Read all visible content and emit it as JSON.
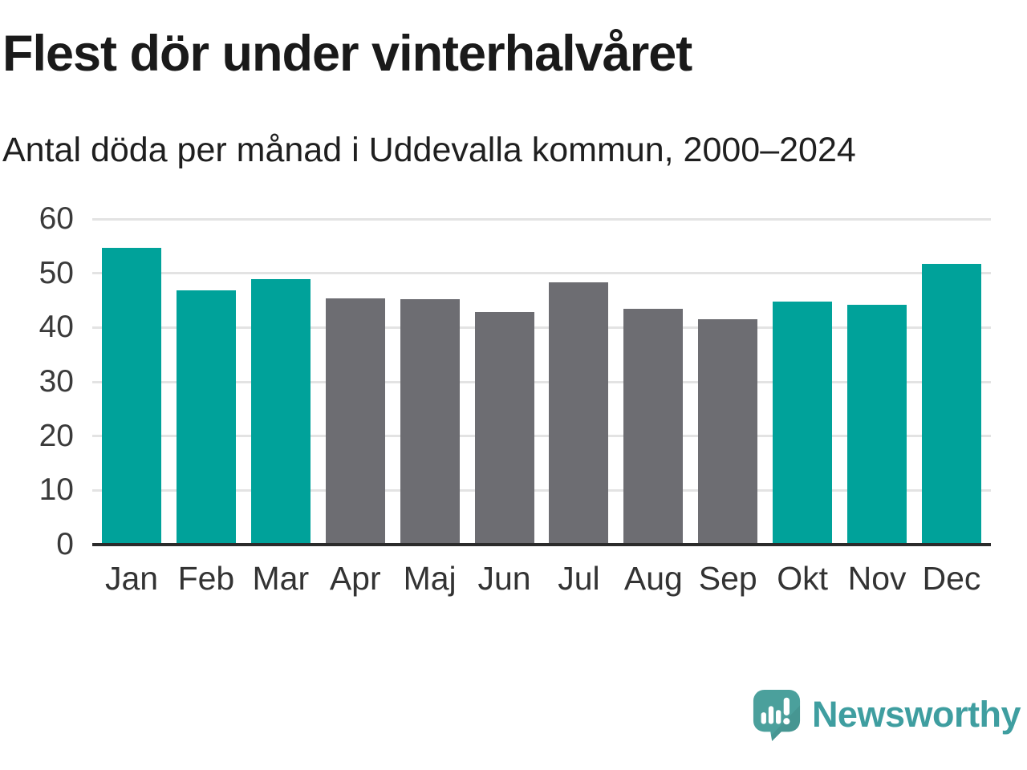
{
  "header": {
    "title": "Flest dör under vinterhalvåret",
    "subtitle": "Antal döda per månad i Uddevalla kommun, 2000–2024"
  },
  "chart_data": {
    "type": "bar",
    "title": "Flest dör under vinterhalvåret",
    "subtitle": "Antal döda per månad i Uddevalla kommun, 2000–2024",
    "categories": [
      "Jan",
      "Feb",
      "Mar",
      "Apr",
      "Maj",
      "Jun",
      "Jul",
      "Aug",
      "Sep",
      "Okt",
      "Nov",
      "Dec"
    ],
    "values": [
      54.7,
      46.8,
      48.9,
      45.4,
      45.2,
      42.9,
      48.4,
      43.5,
      41.5,
      44.8,
      44.2,
      51.7
    ],
    "series_note": "single series; winter months (Jan–Mar, Okt–Dec) highlighted teal, summer months (Apr–Sep) gray",
    "bar_color_keys": [
      "teal",
      "teal",
      "teal",
      "gray",
      "gray",
      "gray",
      "gray",
      "gray",
      "gray",
      "teal",
      "teal",
      "teal"
    ],
    "colors": {
      "teal": "#00a29a",
      "gray": "#6d6d72",
      "gridline": "#e3e3e3",
      "axis": "#2b2b2b",
      "tick_text": "#3a3a3a"
    },
    "xlabel": "",
    "ylabel": "",
    "ylim": [
      0,
      60
    ],
    "yticks": [
      0,
      10,
      20,
      30,
      40,
      50,
      60
    ],
    "grid": true,
    "legend": "none"
  },
  "footer": {
    "brand": "Newsworthy",
    "brand_color": "#3f9ea0",
    "logo_icon": "newsworthy-speech-bubble-bar-chart"
  }
}
